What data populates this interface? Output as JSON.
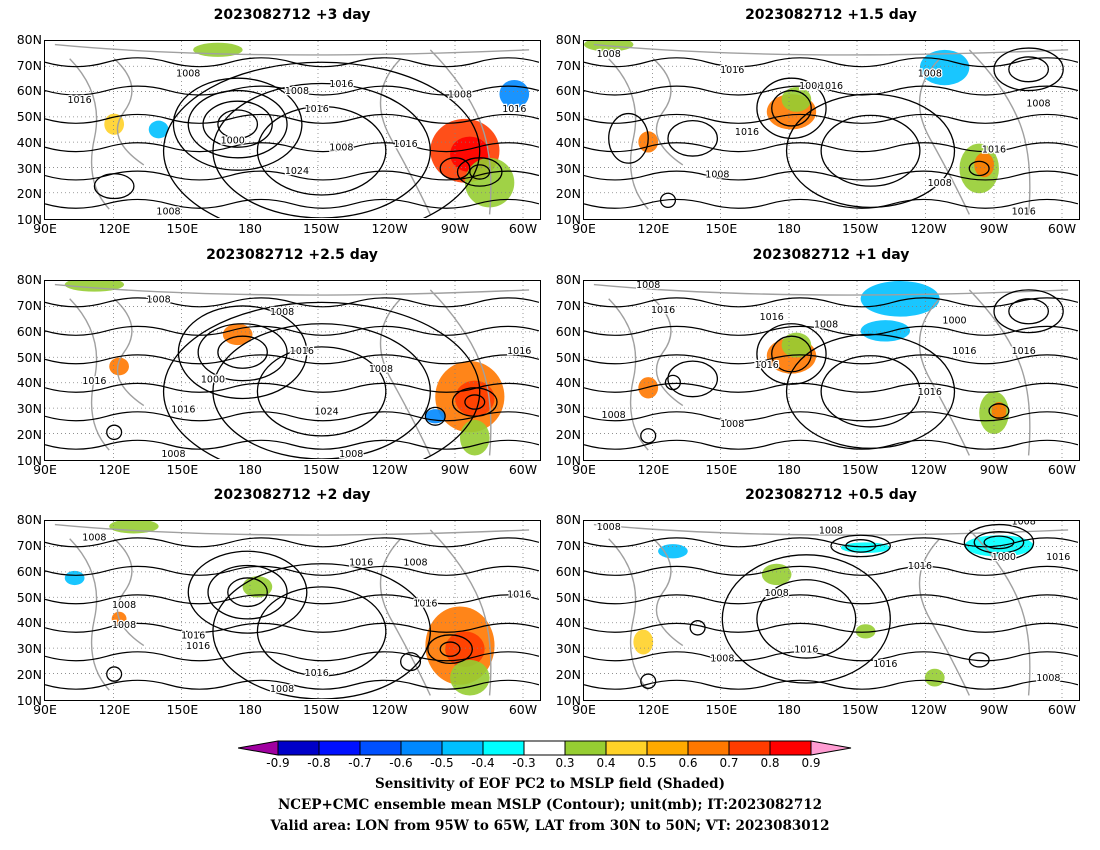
{
  "panels": [
    {
      "title": "2023082712  +3 day",
      "lat_ticks": [
        "80N",
        "70N",
        "60N",
        "50N",
        "40N",
        "30N",
        "20N",
        "10N"
      ],
      "lon_ticks": [
        "90E",
        "120E",
        "150E",
        "180",
        "150W",
        "120W",
        "90W",
        "60W"
      ],
      "contour_labels": [
        "1008",
        "1008",
        "1016",
        "1016",
        "1016",
        "1024",
        "1000",
        "1016",
        "1008",
        "1008",
        "1008",
        "1016"
      ]
    },
    {
      "title": "2023082712  +1.5 day",
      "lat_ticks": [
        "80N",
        "70N",
        "60N",
        "50N",
        "40N",
        "30N",
        "20N",
        "10N"
      ],
      "lon_ticks": [
        "90E",
        "120E",
        "150E",
        "180",
        "150W",
        "120W",
        "90W",
        "60W"
      ],
      "contour_labels": [
        "1008",
        "1016",
        "1008",
        "1016",
        "1016",
        "1008",
        "1008",
        "1016",
        "1008",
        "1008",
        "1016"
      ]
    },
    {
      "title": "2023082712  +2.5 day",
      "lat_ticks": [
        "80N",
        "70N",
        "60N",
        "50N",
        "40N",
        "30N",
        "20N",
        "10N"
      ],
      "lon_ticks": [
        "90E",
        "120E",
        "150E",
        "180",
        "150W",
        "120W",
        "90W",
        "60W"
      ],
      "contour_labels": [
        "1008",
        "1008",
        "1016",
        "1016",
        "1016",
        "1000",
        "1024",
        "1008",
        "1008",
        "1016",
        "1008"
      ]
    },
    {
      "title": "2023082712  +1 day",
      "lat_ticks": [
        "80N",
        "70N",
        "60N",
        "50N",
        "40N",
        "30N",
        "20N",
        "10N"
      ],
      "lon_ticks": [
        "90E",
        "120E",
        "150E",
        "180",
        "150W",
        "120W",
        "90W",
        "60W"
      ],
      "contour_labels": [
        "1008",
        "1016",
        "1016",
        "1008",
        "1016",
        "1008",
        "1000",
        "1016",
        "1016",
        "1008",
        "1016"
      ]
    },
    {
      "title": "2023082712  +2 day",
      "lat_ticks": [
        "80N",
        "70N",
        "60N",
        "50N",
        "40N",
        "30N",
        "20N",
        "10N"
      ],
      "lon_ticks": [
        "90E",
        "120E",
        "150E",
        "180",
        "150W",
        "120W",
        "90W",
        "60W"
      ],
      "contour_labels": [
        "1008",
        "1016",
        "1008",
        "1016",
        "1016",
        "1008",
        "1008",
        "1016",
        "1016",
        "1016",
        "1008"
      ]
    },
    {
      "title": "2023082712  +0.5 day",
      "lat_ticks": [
        "80N",
        "70N",
        "60N",
        "50N",
        "40N",
        "30N",
        "20N",
        "10N"
      ],
      "lon_ticks": [
        "90E",
        "120E",
        "150E",
        "180",
        "150W",
        "120W",
        "90W",
        "60W"
      ],
      "contour_labels": [
        "1008",
        "1008",
        "1016",
        "1008",
        "1016",
        "1016",
        "1008",
        "1000",
        "1016",
        "1008",
        "1008"
      ]
    }
  ],
  "colorbar": {
    "labels": [
      "-0.9",
      "-0.8",
      "-0.7",
      "-0.6",
      "-0.5",
      "-0.4",
      "-0.3",
      "0.3",
      "0.4",
      "0.5",
      "0.6",
      "0.7",
      "0.8",
      "0.9"
    ],
    "colors": [
      "#a000a0",
      "#0000c8",
      "#0010ff",
      "#0050ff",
      "#0088ff",
      "#00c0ff",
      "#00ffff",
      "#ffffff",
      "#96cd32",
      "#ffd228",
      "#ffaa00",
      "#ff7800",
      "#ff3c00",
      "#ff0000",
      "#ff9cd2"
    ]
  },
  "caption": {
    "line1": "Sensitivity of EOF PC2 to MSLP field (Shaded)",
    "line2": "NCEP+CMC ensemble mean MSLP (Contour); unit(mb); IT:2023082712",
    "line3": "Valid area: LON from 95W to 65W, LAT from 30N to 50N; VT: 2023083012"
  },
  "colors": {
    "contour": "#000000",
    "coast": "#a0a0a0",
    "grid": "#808080"
  }
}
